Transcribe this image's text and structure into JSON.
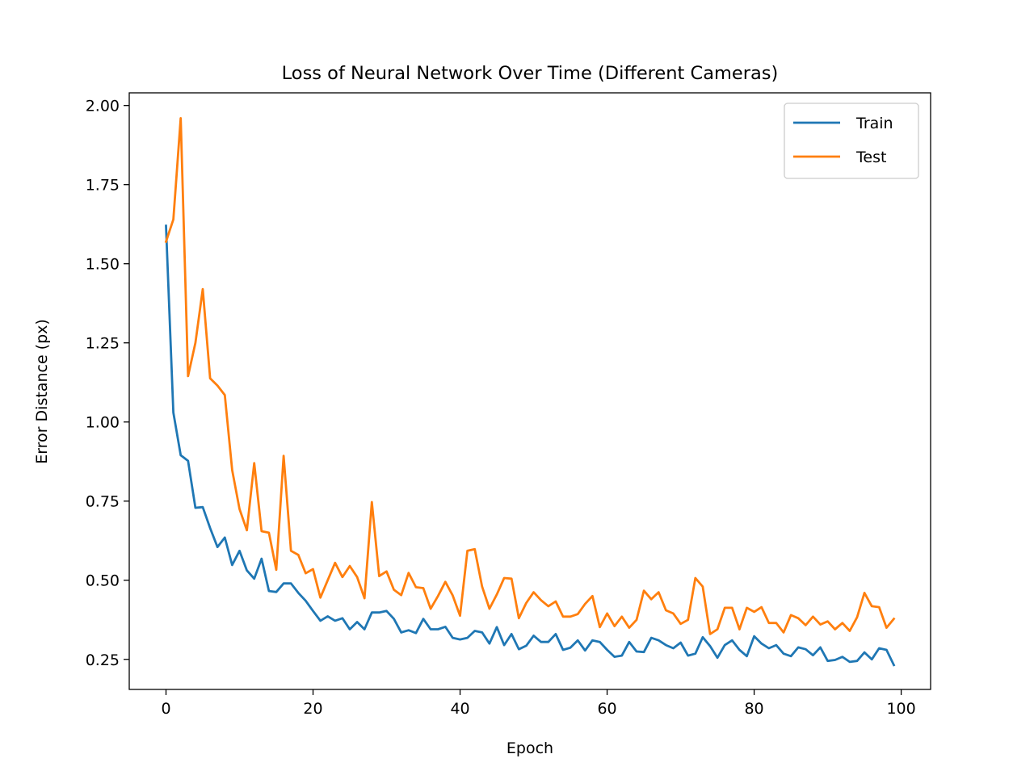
{
  "chart_data": {
    "type": "line",
    "title": "Loss of Neural Network Over Time (Different Cameras)",
    "xlabel": "Epoch",
    "ylabel": "Error Distance (px)",
    "xlim": [
      -5,
      104
    ],
    "ylim": [
      0.155,
      2.04
    ],
    "xticks": [
      0,
      20,
      40,
      60,
      80,
      100
    ],
    "xtick_labels": [
      "0",
      "20",
      "40",
      "60",
      "80",
      "100"
    ],
    "yticks": [
      0.25,
      0.5,
      0.75,
      1.0,
      1.25,
      1.5,
      1.75,
      2.0
    ],
    "ytick_labels": [
      "0.25",
      "0.50",
      "0.75",
      "1.00",
      "1.25",
      "1.50",
      "1.75",
      "2.00"
    ],
    "grid": false,
    "legend_position": "top-right",
    "x": [
      0,
      1,
      2,
      3,
      4,
      5,
      6,
      7,
      8,
      9,
      10,
      11,
      12,
      13,
      14,
      15,
      16,
      17,
      18,
      19,
      20,
      21,
      22,
      23,
      24,
      25,
      26,
      27,
      28,
      29,
      30,
      31,
      32,
      33,
      34,
      35,
      36,
      37,
      38,
      39,
      40,
      41,
      42,
      43,
      44,
      45,
      46,
      47,
      48,
      49,
      50,
      51,
      52,
      53,
      54,
      55,
      56,
      57,
      58,
      59,
      60,
      61,
      62,
      63,
      64,
      65,
      66,
      67,
      68,
      69,
      70,
      71,
      72,
      73,
      74,
      75,
      76,
      77,
      78,
      79,
      80,
      81,
      82,
      83,
      84,
      85,
      86,
      87,
      88,
      89,
      90,
      91,
      92,
      93,
      94,
      95,
      96,
      97,
      98,
      99
    ],
    "series": [
      {
        "name": "Train",
        "color": "#1f77b4",
        "values": [
          1.62,
          1.03,
          0.895,
          0.877,
          0.729,
          0.731,
          0.665,
          0.605,
          0.635,
          0.548,
          0.593,
          0.531,
          0.505,
          0.568,
          0.466,
          0.463,
          0.49,
          0.49,
          0.46,
          0.435,
          0.403,
          0.372,
          0.386,
          0.372,
          0.38,
          0.345,
          0.368,
          0.345,
          0.398,
          0.398,
          0.403,
          0.378,
          0.335,
          0.342,
          0.333,
          0.378,
          0.345,
          0.345,
          0.353,
          0.318,
          0.313,
          0.318,
          0.34,
          0.335,
          0.3,
          0.352,
          0.295,
          0.33,
          0.282,
          0.293,
          0.325,
          0.305,
          0.305,
          0.33,
          0.28,
          0.287,
          0.31,
          0.278,
          0.31,
          0.305,
          0.28,
          0.258,
          0.262,
          0.305,
          0.275,
          0.273,
          0.318,
          0.31,
          0.295,
          0.285,
          0.303,
          0.262,
          0.268,
          0.32,
          0.292,
          0.255,
          0.295,
          0.31,
          0.28,
          0.26,
          0.323,
          0.3,
          0.285,
          0.295,
          0.268,
          0.26,
          0.288,
          0.282,
          0.263,
          0.288,
          0.245,
          0.248,
          0.258,
          0.242,
          0.245,
          0.272,
          0.25,
          0.285,
          0.28,
          0.232
        ]
      },
      {
        "name": "Test",
        "color": "#ff7f0e",
        "values": [
          1.57,
          1.64,
          1.96,
          1.145,
          1.25,
          1.42,
          1.138,
          1.115,
          1.085,
          0.848,
          0.725,
          0.658,
          0.87,
          0.655,
          0.65,
          0.533,
          0.893,
          0.593,
          0.58,
          0.522,
          0.535,
          0.445,
          0.5,
          0.555,
          0.51,
          0.545,
          0.51,
          0.443,
          0.747,
          0.513,
          0.528,
          0.47,
          0.453,
          0.523,
          0.478,
          0.475,
          0.41,
          0.45,
          0.495,
          0.452,
          0.388,
          0.593,
          0.598,
          0.48,
          0.41,
          0.455,
          0.507,
          0.505,
          0.38,
          0.428,
          0.462,
          0.437,
          0.418,
          0.433,
          0.385,
          0.385,
          0.393,
          0.425,
          0.45,
          0.352,
          0.395,
          0.355,
          0.385,
          0.35,
          0.375,
          0.467,
          0.44,
          0.462,
          0.405,
          0.395,
          0.362,
          0.375,
          0.507,
          0.48,
          0.33,
          0.345,
          0.413,
          0.413,
          0.345,
          0.413,
          0.4,
          0.415,
          0.365,
          0.365,
          0.335,
          0.39,
          0.38,
          0.358,
          0.385,
          0.36,
          0.37,
          0.345,
          0.365,
          0.34,
          0.383,
          0.46,
          0.418,
          0.415,
          0.35,
          0.378
        ]
      }
    ]
  }
}
